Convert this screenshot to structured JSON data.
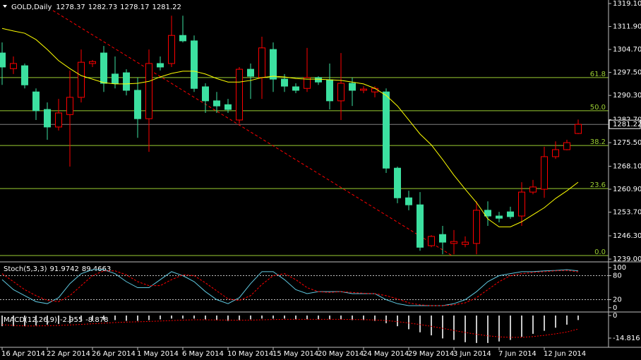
{
  "chart_data": [
    {
      "type": "candlestick",
      "title": "GOLD,Daily",
      "categories": [
        "16 Apr 2014",
        null,
        null,
        null,
        "22 Apr 2014",
        null,
        null,
        null,
        "26 Apr 2014",
        null,
        null,
        null,
        "1 May 2014",
        null,
        null,
        null,
        "6 May 2014",
        null,
        null,
        null,
        "10 May 2014",
        null,
        null,
        null,
        "15 May 2014",
        null,
        null,
        null,
        "20 May 2014",
        null,
        null,
        null,
        "24 May 2014",
        null,
        null,
        null,
        "29 May 2014",
        null,
        null,
        null,
        "3 Jun 2014",
        null,
        null,
        null,
        "7 Jun 2014",
        null,
        null,
        null,
        "12 Jun 2014",
        null,
        null,
        null
      ],
      "open": [
        1303.6,
        1298.7,
        1299.6,
        1291.4,
        1285.9,
        1280.4,
        1284.3,
        1289.7,
        1300.3,
        1303.6,
        1297.0,
        1297.4,
        1291.9,
        1283.0,
        1300.3,
        1300.3,
        1309.1,
        1307.4,
        1293.0,
        1288.6,
        1287.4,
        1282.6,
        1298.5,
        1295.9,
        1304.7,
        1295.4,
        1293.0,
        1292.5,
        1295.9,
        1295.2,
        1288.6,
        1294.1,
        1291.9,
        1291.4,
        1291.4,
        1267.5,
        1258.2,
        1256.0,
        1243.2,
        1246.7,
        1243.9,
        1243.6,
        1243.9,
        1254.3,
        1252.5,
        1253.8,
        1252.5,
        1260.0,
        1260.9,
        1271.1,
        1273.3,
        1278.37
      ],
      "high": [
        1306.9,
        1302.5,
        1300.3,
        1292.5,
        1288.1,
        1289.2,
        1298.1,
        1304.7,
        1301.4,
        1305.8,
        1302.5,
        1298.5,
        1295.9,
        1304.7,
        1302.5,
        1315.3,
        1315.3,
        1309.1,
        1294.1,
        1291.4,
        1289.2,
        1299.2,
        1300.3,
        1308.7,
        1306.9,
        1297.0,
        1294.1,
        1305.2,
        1296.3,
        1300.3,
        1303.6,
        1295.9,
        1293.2,
        1293.2,
        1292.5,
        1268.0,
        1260.4,
        1260.0,
        1246.5,
        1249.4,
        1248.1,
        1246.1,
        1257.1,
        1257.1,
        1253.8,
        1255.4,
        1263.1,
        1263.8,
        1274.2,
        1275.9,
        1276.4,
        1282.73
      ],
      "low": [
        1293.6,
        1297.0,
        1292.5,
        1282.6,
        1276.4,
        1279.3,
        1268.0,
        1288.1,
        1299.2,
        1291.4,
        1292.5,
        1290.3,
        1277.0,
        1272.6,
        1298.1,
        1299.2,
        1306.9,
        1291.4,
        1284.8,
        1284.8,
        1284.8,
        1281.5,
        1289.2,
        1289.2,
        1291.4,
        1291.4,
        1291.0,
        1291.4,
        1293.6,
        1285.9,
        1282.6,
        1287.0,
        1291.0,
        1289.7,
        1266.0,
        1256.5,
        1254.3,
        1241.6,
        1242.7,
        1240.5,
        1240.5,
        1242.7,
        1240.5,
        1249.4,
        1250.5,
        1251.6,
        1249.4,
        1259.3,
        1258.2,
        1270.4,
        1273.1,
        1278.17
      ],
      "close": [
        1299.2,
        1300.3,
        1293.6,
        1285.5,
        1280.4,
        1284.8,
        1289.7,
        1300.7,
        1300.9,
        1294.1,
        1294.1,
        1291.9,
        1283.0,
        1300.3,
        1299.2,
        1309.1,
        1307.4,
        1292.5,
        1288.6,
        1287.0,
        1285.9,
        1298.5,
        1296.3,
        1305.2,
        1295.4,
        1293.2,
        1291.9,
        1295.9,
        1294.5,
        1288.6,
        1294.1,
        1291.9,
        1292.3,
        1292.5,
        1267.5,
        1258.2,
        1256.0,
        1242.7,
        1246.1,
        1244.3,
        1244.5,
        1244.3,
        1254.3,
        1252.5,
        1251.8,
        1252.3,
        1260.0,
        1261.6,
        1271.1,
        1273.3,
        1275.5,
        1281.22
      ],
      "colors": {
        "bull": "#ff0000",
        "bear": "#3ce0a0"
      },
      "ma": {
        "color": "#ffff00",
        "values": [
          1311.3,
          1310.5,
          1309.8,
          1307.8,
          1304.7,
          1301.2,
          1298.7,
          1296.5,
          1295.4,
          1294.3,
          1293.9,
          1293.9,
          1294.1,
          1294.7,
          1296.1,
          1297.2,
          1297.9,
          1297.9,
          1297.0,
          1295.6,
          1294.5,
          1294.5,
          1295.0,
          1295.9,
          1296.3,
          1296.1,
          1295.6,
          1295.4,
          1295.4,
          1295.2,
          1295.0,
          1294.5,
          1293.9,
          1292.5,
          1290.3,
          1287.0,
          1282.6,
          1278.2,
          1274.8,
          1270.2,
          1265.3,
          1260.9,
          1256.7,
          1251.6,
          1249.1,
          1249.1,
          1250.7,
          1252.9,
          1255.1,
          1258.0,
          1260.4,
          1263.1
        ]
      },
      "fib_color": "#9acd32",
      "fib_levels": [
        {
          "level": 61.8,
          "price": 1295.9
        },
        {
          "level": {
            "value": 50,
            "label": "50.0"
          },
          "price": 1285.5
        },
        {
          "level": 38.2,
          "price": 1274.6
        },
        {
          "level": 23.6,
          "price": 1261.1
        },
        {
          "level": {
            "value": 0,
            "label": "0.0"
          },
          "price": 1240.1
        }
      ],
      "ylim": [
        1238.34,
        1320.21
      ],
      "yticks": [
        {
          "value": 1319.1,
          "label": "1319.10"
        },
        {
          "value": 1311.9,
          "label": "1311.90"
        },
        {
          "value": 1304.7,
          "label": "1304.70"
        },
        {
          "value": 1297.5,
          "label": "1297.50"
        },
        {
          "value": 1290.3,
          "label": "1290.30"
        },
        {
          "value": 1282.7,
          "label": "1282.70"
        },
        {
          "value": 1275.5,
          "label": "1275.50"
        },
        {
          "value": 1268.1,
          "label": "1268.10"
        },
        {
          "value": 1260.9,
          "label": "1260.90"
        },
        {
          "value": 1253.7,
          "label": "1253.70"
        },
        {
          "value": 1246.3,
          "label": "1246.30"
        },
        {
          "value": 1239,
          "label": "1239.00"
        }
      ]
    },
    {
      "type": "line",
      "title": "Stoch(5,3,3)",
      "series": [
        {
          "color": "#5fc8e0",
          "values": [
            70,
            45,
            30,
            15,
            10,
            25,
            60,
            85,
            95,
            95,
            85,
            65,
            50,
            50,
            70,
            90,
            80,
            65,
            40,
            20,
            10,
            25,
            60,
            90,
            90,
            70,
            45,
            35,
            40,
            40,
            40,
            35,
            35,
            35,
            20,
            10,
            5,
            5,
            5,
            5,
            10,
            20,
            40,
            65,
            80,
            85,
            90,
            90,
            92,
            93,
            95,
            91.9742
          ]
        },
        {
          "color": "#ff0000",
          "values": [
            85,
            65,
            45,
            30,
            18,
            15,
            30,
            55,
            80,
            92,
            92,
            82,
            65,
            55,
            55,
            70,
            82,
            80,
            62,
            42,
            22,
            18,
            30,
            58,
            80,
            85,
            70,
            50,
            40,
            38,
            40,
            38,
            36,
            35,
            30,
            22,
            12,
            7,
            5,
            5,
            7,
            12,
            25,
            45,
            65,
            80,
            85,
            88,
            90,
            92,
            93,
            89.4663
          ]
        }
      ],
      "ylim": [
        -9.1,
        110.9
      ],
      "yticks": [
        100,
        80,
        20,
        0
      ]
    },
    {
      "type": "macd",
      "title": "MACD(12,26,9)",
      "series": [
        {
          "color": "#c8c8c8",
          "values": [
            -7,
            -7,
            -7,
            -6.5,
            -6,
            -5.5,
            -5,
            -4,
            -3.5,
            -3,
            -3,
            -3.5,
            -3.5,
            -3,
            -2.5,
            -2,
            -2,
            -2,
            -2.5,
            -3,
            -3.5,
            -3,
            -2.5,
            -2,
            -2,
            -2,
            -2.5,
            -2.5,
            -2.5,
            -2.5,
            -2.5,
            -3,
            -3,
            -3.5,
            -5,
            -7,
            -9,
            -11,
            -13,
            -15,
            -16,
            -17.5,
            -18,
            -18,
            -17,
            -16,
            -14,
            -12,
            -10,
            -8,
            -6,
            -2.955
          ]
        },
        {
          "color": "#ff0000",
          "values": [
            -6,
            -6.5,
            -6.8,
            -6.8,
            -6.7,
            -6.5,
            -6.2,
            -5.8,
            -5.4,
            -5,
            -4.6,
            -4.3,
            -4.1,
            -3.9,
            -3.6,
            -3.3,
            -3,
            -2.8,
            -2.8,
            -2.9,
            -3,
            -3.1,
            -3,
            -2.8,
            -2.6,
            -2.5,
            -2.5,
            -2.5,
            -2.5,
            -2.5,
            -2.5,
            -2.6,
            -2.7,
            -2.9,
            -3.3,
            -4,
            -4.9,
            -5.9,
            -7.1,
            -8.4,
            -9.8,
            -11.1,
            -12.3,
            -13.3,
            -14,
            -14.3,
            -14.3,
            -13.8,
            -13,
            -12,
            -10.8,
            -8.878
          ]
        }
      ],
      "ylim": [
        -20.83,
        1.85
      ],
      "yticks": [
        0,
        -14.816
      ]
    }
  ]
}
